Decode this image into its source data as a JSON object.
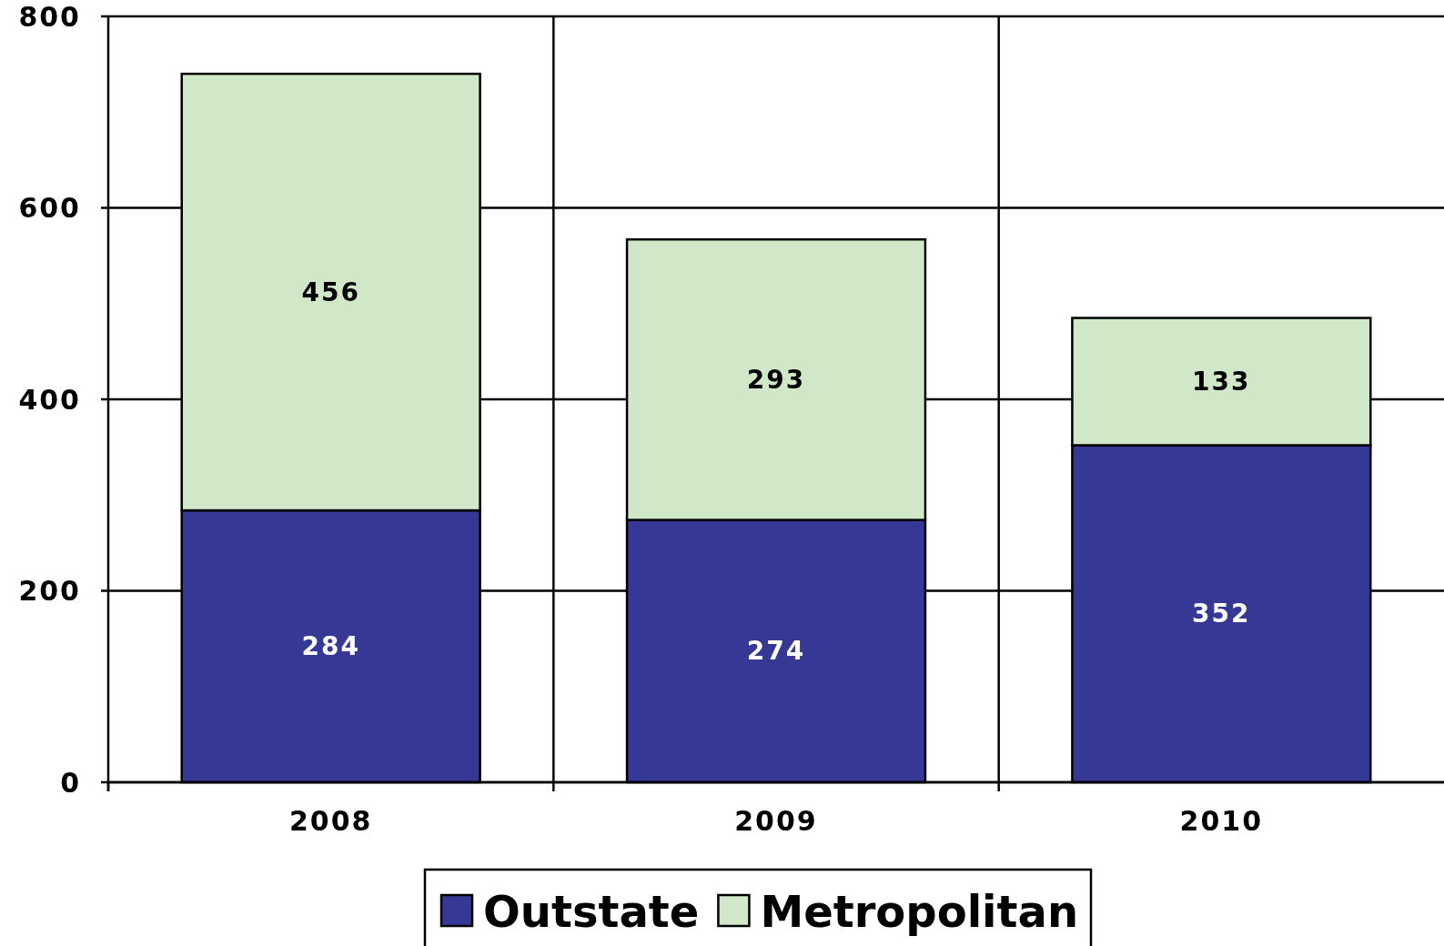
{
  "chart_data": {
    "type": "bar",
    "stacked": true,
    "categories": [
      "2008",
      "2009",
      "2010"
    ],
    "series": [
      {
        "name": "Outstate",
        "color": "#353894",
        "values": [
          284,
          274,
          352
        ]
      },
      {
        "name": "Metropolitan",
        "color": "#d0e8c8",
        "values": [
          456,
          293,
          133
        ]
      }
    ],
    "ylim": [
      0,
      800
    ],
    "yticks": [
      0,
      200,
      400,
      600,
      800
    ],
    "grid": true,
    "data_labels": true,
    "legend": "bottom"
  }
}
